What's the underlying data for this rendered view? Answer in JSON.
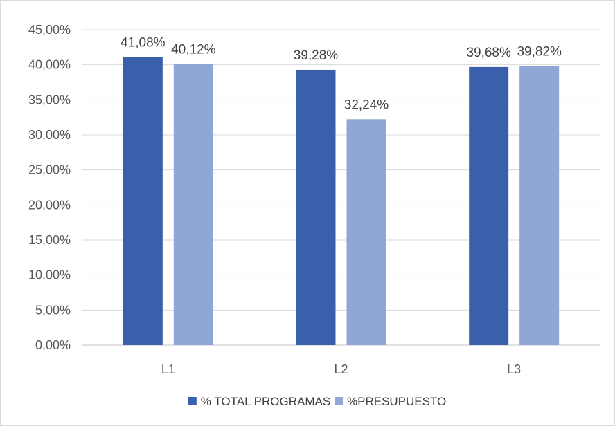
{
  "chart_data": {
    "type": "bar",
    "categories": [
      "L1",
      "L2",
      "L3"
    ],
    "series": [
      {
        "name": "% TOTAL PROGRAMAS",
        "color": "#3a5fab",
        "values": [
          41.08,
          39.28,
          39.68
        ],
        "labels": [
          "41,08%",
          "39,28%",
          "39,68%"
        ]
      },
      {
        "name": "%PRESUPUESTO",
        "color": "#8fa6d6",
        "values": [
          40.12,
          32.24,
          39.82
        ],
        "labels": [
          "40,12%",
          "32,24%",
          "39,82%"
        ]
      }
    ],
    "ylim": [
      0,
      45
    ],
    "yticks": [
      {
        "value": 0,
        "label": "0,00%"
      },
      {
        "value": 5,
        "label": "5,00%"
      },
      {
        "value": 10,
        "label": "10,00%"
      },
      {
        "value": 15,
        "label": "15,00%"
      },
      {
        "value": 20,
        "label": "20,00%"
      },
      {
        "value": 25,
        "label": "25,00%"
      },
      {
        "value": 30,
        "label": "30,00%"
      },
      {
        "value": 35,
        "label": "35,00%"
      },
      {
        "value": 40,
        "label": "40,00%"
      },
      {
        "value": 45,
        "label": "45,00%"
      }
    ],
    "title": "",
    "xlabel": "",
    "ylabel": "",
    "grid": true,
    "legend": "bottom",
    "gridColor": "#d9d9d9"
  }
}
